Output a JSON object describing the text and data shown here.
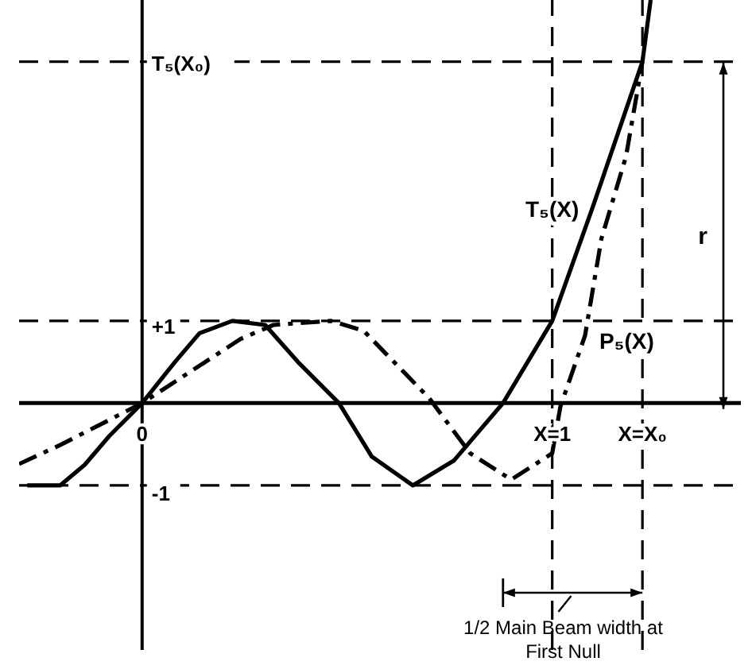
{
  "chart_data": {
    "type": "line",
    "categories": [
      null,
      null,
      null,
      null,
      null,
      null,
      null,
      null,
      null,
      null,
      null,
      null,
      null,
      null,
      null,
      "0",
      null,
      null,
      null,
      null,
      null,
      null,
      null,
      null,
      null,
      null,
      null,
      null,
      null,
      null,
      null,
      null,
      null,
      null,
      null,
      null,
      null,
      null,
      null,
      null,
      null,
      null,
      null,
      null,
      null,
      null,
      null,
      null,
      null,
      null,
      null,
      null,
      null,
      null,
      null,
      null,
      null,
      null,
      null,
      null,
      null,
      null,
      null,
      null,
      null,
      "X=1",
      null,
      null,
      null,
      null,
      null,
      null,
      null,
      null,
      null,
      null,
      "X=X₀",
      null,
      null,
      null,
      null,
      null,
      null,
      null,
      null,
      null,
      null,
      null,
      null
    ],
    "series": [
      {
        "name": "T₅(X)",
        "color": "#000000",
        "line_style": "solid",
        "values": [
          null,
          -1,
          null,
          null,
          null,
          -1,
          null,
          null,
          -0.75,
          null,
          null,
          -0.4,
          null,
          null,
          null,
          0,
          null,
          null,
          null,
          0.5,
          null,
          null,
          0.85,
          null,
          null,
          null,
          1,
          null,
          null,
          null,
          0.95,
          null,
          null,
          null,
          0.5,
          null,
          null,
          null,
          null,
          0,
          null,
          null,
          null,
          -0.65,
          null,
          null,
          null,
          null,
          -1,
          null,
          null,
          null,
          null,
          -0.7,
          null,
          null,
          null,
          null,
          null,
          0,
          null,
          null,
          null,
          null,
          null,
          1,
          null,
          null,
          null,
          null,
          2.4,
          null,
          null,
          null,
          null,
          null,
          4.15,
          4.9,
          null,
          null,
          null,
          null,
          null,
          null,
          null,
          null,
          null,
          null,
          null
        ]
      },
      {
        "name": "P₅(X)",
        "color": "#000000",
        "line_style": "dashed",
        "values": [
          -0.74,
          null,
          null,
          null,
          null,
          -0.51,
          null,
          null,
          null,
          null,
          null,
          null,
          null,
          null,
          null,
          0,
          null,
          null,
          null,
          null,
          null,
          null,
          null,
          null,
          null,
          null,
          null,
          0.78,
          null,
          null,
          null,
          0.95,
          null,
          null,
          null,
          null,
          null,
          null,
          1,
          null,
          null,
          null,
          0.88,
          null,
          null,
          null,
          null,
          null,
          null,
          null,
          0.06,
          null,
          null,
          null,
          null,
          -0.61,
          null,
          null,
          null,
          null,
          -0.93,
          null,
          null,
          null,
          null,
          -0.61,
          -0.04,
          null,
          null,
          0.82,
          null,
          2.0,
          null,
          null,
          3.0,
          null,
          4.15,
          null,
          null,
          null,
          null,
          null,
          null,
          null,
          null,
          null,
          null,
          null,
          null
        ]
      }
    ],
    "ylim": [
      -3,
      4.9
    ],
    "yticks": [
      {
        "value": 4.15,
        "label": "T₅(X₀)"
      },
      {
        "value": 1,
        "label": "+1"
      },
      {
        "value": -1,
        "label": "-1"
      }
    ],
    "ref_lines": [
      {
        "axis": "y",
        "value": 1,
        "line_style": "dashed"
      },
      {
        "axis": "y",
        "value": -1,
        "line_style": "dashed"
      },
      {
        "axis": "y",
        "value": 4.15,
        "line_style": "dashed"
      },
      {
        "axis": "x",
        "value": "X=1",
        "line_style": "dashed"
      },
      {
        "axis": "x",
        "value": "X=X₀",
        "line_style": "dashed"
      }
    ],
    "annotations": [
      "r",
      "1/2 Main Beam width at First Null"
    ],
    "grid": false,
    "marker": "none"
  }
}
